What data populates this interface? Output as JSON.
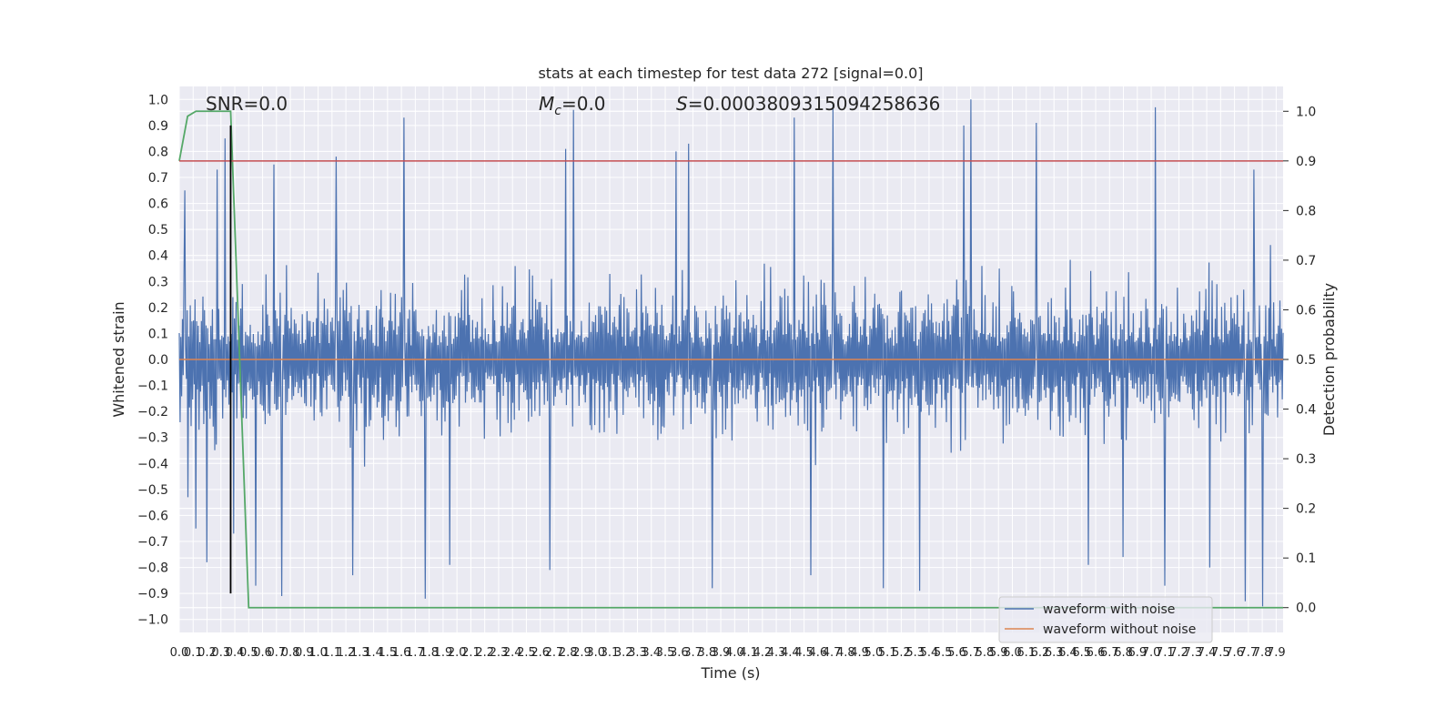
{
  "chart_data": {
    "type": "line",
    "title": "stats at each timestep for test data 272 [signal=0.0]",
    "xlabel": "Time (s)",
    "ylabel": "Whitened strain",
    "ylabel_right": "Detection probability",
    "xlim": [
      0.0,
      7.95
    ],
    "ylim": [
      -1.05,
      1.05
    ],
    "ylim_right": [
      -0.05,
      1.05
    ],
    "grid": true,
    "legend_position": "lower right",
    "x_ticks": [
      0.0,
      0.1,
      0.2,
      0.3,
      0.4,
      0.5,
      0.6,
      0.7,
      0.8,
      0.9,
      1.0,
      1.1,
      1.2,
      1.3,
      1.4,
      1.5,
      1.6,
      1.7,
      1.8,
      1.9,
      2.0,
      2.1,
      2.2,
      2.3,
      2.4,
      2.5,
      2.6,
      2.7,
      2.8,
      2.9,
      3.0,
      3.1,
      3.2,
      3.3,
      3.4,
      3.5,
      3.6,
      3.7,
      3.8,
      3.9,
      4.0,
      4.1,
      4.2,
      4.3,
      4.4,
      4.5,
      4.6,
      4.7,
      4.8,
      4.9,
      5.0,
      5.1,
      5.2,
      5.3,
      5.4,
      5.5,
      5.6,
      5.7,
      5.8,
      5.9,
      6.0,
      6.1,
      6.2,
      6.3,
      6.4,
      6.5,
      6.6,
      6.7,
      6.8,
      6.9,
      7.0,
      7.1,
      7.2,
      7.3,
      7.4,
      7.5,
      7.6,
      7.7,
      7.8,
      7.9
    ],
    "x_tick_labels": [
      "0.0",
      "0.1",
      "0.2",
      "0.3",
      "0.4",
      "0.5",
      "0.6",
      "0.7",
      "0.8",
      "0.9",
      "1.0",
      "1.1",
      "1.2",
      "1.3",
      "1.4",
      "1.5",
      "1.6",
      "1.7",
      "1.8",
      "1.9",
      "2.0",
      "2.1",
      "2.2",
      "2.3",
      "2.4",
      "2.5",
      "2.6",
      "2.7",
      "2.8",
      "2.9",
      "3.0",
      "3.1",
      "3.2",
      "3.3",
      "3.4",
      "3.5",
      "3.6",
      "3.7",
      "3.8",
      "3.9",
      "4.0",
      "4.1",
      "4.2",
      "4.3",
      "4.4",
      "4.5",
      "4.6",
      "4.7",
      "4.8",
      "4.9",
      "5.0",
      "5.1",
      "5.2",
      "5.3",
      "5.4",
      "5.5",
      "5.6",
      "5.7",
      "5.8",
      "5.9",
      "6.0",
      "6.1",
      "6.2",
      "6.3",
      "6.4",
      "6.5",
      "6.6",
      "6.7",
      "6.8",
      "6.9",
      "7.0",
      "7.1",
      "7.2",
      "7.3",
      "7.4",
      "7.5",
      "7.6",
      "7.7",
      "7.8",
      "7.9"
    ],
    "y_ticks": [
      -1.0,
      -0.9,
      -0.8,
      -0.7,
      -0.6,
      -0.5,
      -0.4,
      -0.3,
      -0.2,
      -0.1,
      0.0,
      0.1,
      0.2,
      0.3,
      0.4,
      0.5,
      0.6,
      0.7,
      0.8,
      0.9,
      1.0
    ],
    "y_tick_labels": [
      "−1.0",
      "−0.9",
      "−0.8",
      "−0.7",
      "−0.6",
      "−0.5",
      "−0.4",
      "−0.3",
      "−0.2",
      "−0.1",
      "0.0",
      "0.1",
      "0.2",
      "0.3",
      "0.4",
      "0.5",
      "0.6",
      "0.7",
      "0.8",
      "0.9",
      "1.0"
    ],
    "y_right_ticks": [
      0.0,
      0.1,
      0.2,
      0.3,
      0.4,
      0.5,
      0.6,
      0.7,
      0.8,
      0.9,
      1.0
    ],
    "y_right_tick_labels": [
      "0.0",
      "0.1",
      "0.2",
      "0.3",
      "0.4",
      "0.5",
      "0.6",
      "0.7",
      "0.8",
      "0.9",
      "1.0"
    ],
    "annotations": {
      "snr": "SNR=0.0",
      "mc_symbol": "M",
      "mc_sub": "c",
      "mc_value": "=0.0",
      "s_symbol": "S",
      "s_value": "=0.0003809315094258636"
    },
    "series": [
      {
        "name": "waveform with noise",
        "axis": "left",
        "color": "#4c72b0",
        "kind": "noise",
        "typical_envelope": [
          -0.45,
          0.45
        ],
        "spikes": [
          {
            "x": 0.04,
            "y": 0.65
          },
          {
            "x": 0.06,
            "y": -0.53
          },
          {
            "x": 0.12,
            "y": -0.65
          },
          {
            "x": 0.2,
            "y": -0.78
          },
          {
            "x": 0.27,
            "y": 0.73
          },
          {
            "x": 0.33,
            "y": 0.85
          },
          {
            "x": 0.39,
            "y": -0.67
          },
          {
            "x": 0.55,
            "y": -0.87
          },
          {
            "x": 0.68,
            "y": 0.75
          },
          {
            "x": 0.74,
            "y": -0.91
          },
          {
            "x": 1.13,
            "y": 0.78
          },
          {
            "x": 1.25,
            "y": -0.83
          },
          {
            "x": 1.62,
            "y": 0.93
          },
          {
            "x": 1.77,
            "y": -0.92
          },
          {
            "x": 1.95,
            "y": -0.79
          },
          {
            "x": 2.67,
            "y": -0.81
          },
          {
            "x": 2.78,
            "y": 0.81
          },
          {
            "x": 2.84,
            "y": 0.96
          },
          {
            "x": 3.58,
            "y": 0.8
          },
          {
            "x": 3.67,
            "y": 0.83
          },
          {
            "x": 3.84,
            "y": -0.88
          },
          {
            "x": 4.43,
            "y": 0.93
          },
          {
            "x": 4.55,
            "y": -0.83
          },
          {
            "x": 4.71,
            "y": 0.98
          },
          {
            "x": 5.07,
            "y": -0.88
          },
          {
            "x": 5.33,
            "y": -0.89
          },
          {
            "x": 5.65,
            "y": 0.9
          },
          {
            "x": 5.7,
            "y": 1.0
          },
          {
            "x": 6.17,
            "y": 0.91
          },
          {
            "x": 6.55,
            "y": -0.79
          },
          {
            "x": 6.7,
            "y": -0.05
          },
          {
            "x": 6.8,
            "y": -0.76
          },
          {
            "x": 7.03,
            "y": 0.97
          },
          {
            "x": 7.1,
            "y": -0.87
          },
          {
            "x": 7.42,
            "y": -0.8
          },
          {
            "x": 7.68,
            "y": -0.93
          },
          {
            "x": 7.74,
            "y": 0.73
          },
          {
            "x": 7.8,
            "y": -0.95
          },
          {
            "x": 7.86,
            "y": 0.44
          }
        ]
      },
      {
        "name": "waveform without noise",
        "axis": "left",
        "color": "#dd8452",
        "x": [
          0.0,
          7.95
        ],
        "y": [
          0.0,
          0.0
        ]
      },
      {
        "axis": "right",
        "color": "#55a868",
        "x": [
          0.0,
          0.06,
          0.12,
          0.37,
          0.5,
          7.95
        ],
        "y": [
          0.9,
          0.99,
          1.0,
          1.0,
          0.0,
          0.0
        ]
      },
      {
        "axis": "right",
        "color": "#c44e52",
        "x": [
          0.0,
          7.95
        ],
        "y": [
          0.9,
          0.9
        ]
      },
      {
        "axis": "left",
        "color": "#000000",
        "kind": "vertical",
        "x": [
          0.37,
          0.37
        ],
        "y": [
          -0.9,
          0.9
        ]
      }
    ]
  }
}
